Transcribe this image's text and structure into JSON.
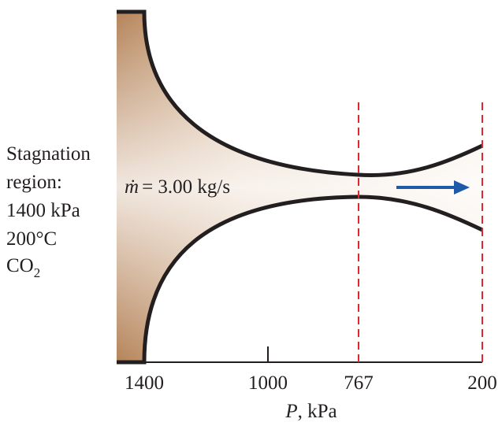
{
  "stagnation_region": {
    "lines": [
      "Stagnation",
      "region:",
      "1400 kPa",
      "200°C"
    ],
    "gas": {
      "formula": "CO",
      "subscript": "2"
    }
  },
  "flow_label": {
    "symbol": "ṁ",
    "text": "= 3.00 kg/s"
  },
  "axis": {
    "ticks": [
      "1400",
      "1000",
      "767",
      "200"
    ],
    "label": {
      "variable": "P",
      "unit": ", kPa"
    }
  }
}
